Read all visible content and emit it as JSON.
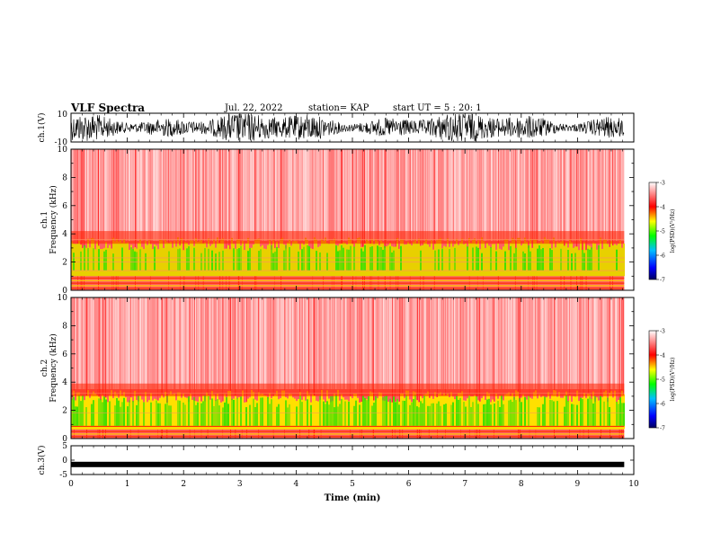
{
  "header": {
    "title": "VLF Spectra",
    "date": "Jul. 22, 2022",
    "station": "station= KAP",
    "start": "start UT =  5 : 20: 1"
  },
  "chart_data": [
    {
      "type": "line",
      "panel": "ch1-waveform",
      "ylabel": "ch.1(V)",
      "ylim": [
        -10,
        10
      ],
      "yticks": [
        "10",
        "-10"
      ],
      "xlim": [
        0,
        10
      ],
      "description_color": "#000000"
    },
    {
      "type": "heatmap",
      "panel": "ch1-spectrogram",
      "ylabel": "ch.1 Frequency (kHz)",
      "ylim": [
        0,
        10
      ],
      "yticks": [
        "0",
        "2",
        "4",
        "6",
        "8",
        "10"
      ],
      "xlim": [
        0,
        10
      ],
      "colorbar": {
        "label": "log(PSD)(V²/Hz)",
        "range": [
          -7,
          -3
        ],
        "ticks": [
          "-3",
          "-4",
          "-5",
          "-6",
          "-7"
        ]
      },
      "bands": [
        {
          "freq_khz": [
            0,
            0.9
          ],
          "level": "yellow-red"
        },
        {
          "freq_khz": [
            0.9,
            3.3
          ],
          "level": "yellow-green"
        },
        {
          "freq_khz": [
            3.3,
            10
          ],
          "level": "red-white"
        }
      ]
    },
    {
      "type": "heatmap",
      "panel": "ch2-spectrogram",
      "ylabel": "ch.2 Frequency (kHz)",
      "ylim": [
        0,
        10
      ],
      "yticks": [
        "0",
        "2",
        "4",
        "6",
        "8",
        "10"
      ],
      "xlim": [
        0,
        10
      ],
      "colorbar": {
        "label": "log(PSD)(V²/Hz)",
        "range": [
          -7,
          -3
        ],
        "ticks": [
          "-3",
          "-4",
          "-5",
          "-6",
          "-7"
        ]
      },
      "bands": [
        {
          "freq_khz": [
            0,
            0.6
          ],
          "level": "yellow-red"
        },
        {
          "freq_khz": [
            0.6,
            3.2
          ],
          "level": "green-yellow"
        },
        {
          "freq_khz": [
            3.2,
            10
          ],
          "level": "red-white"
        }
      ]
    },
    {
      "type": "line",
      "panel": "ch3-waveform",
      "ylabel": "ch.3(V)",
      "ylim": [
        -5,
        5
      ],
      "yticks": [
        "5",
        "0",
        "-5"
      ],
      "level": -1.5,
      "xlim": [
        0,
        10
      ]
    }
  ],
  "xaxis": {
    "label": "Time (min)",
    "ticks": [
      "0",
      "1",
      "2",
      "3",
      "4",
      "5",
      "6",
      "7",
      "8",
      "9",
      "10"
    ],
    "data_end": 9.83
  },
  "colors": {
    "axis": "#000000",
    "wave": "#000000"
  }
}
